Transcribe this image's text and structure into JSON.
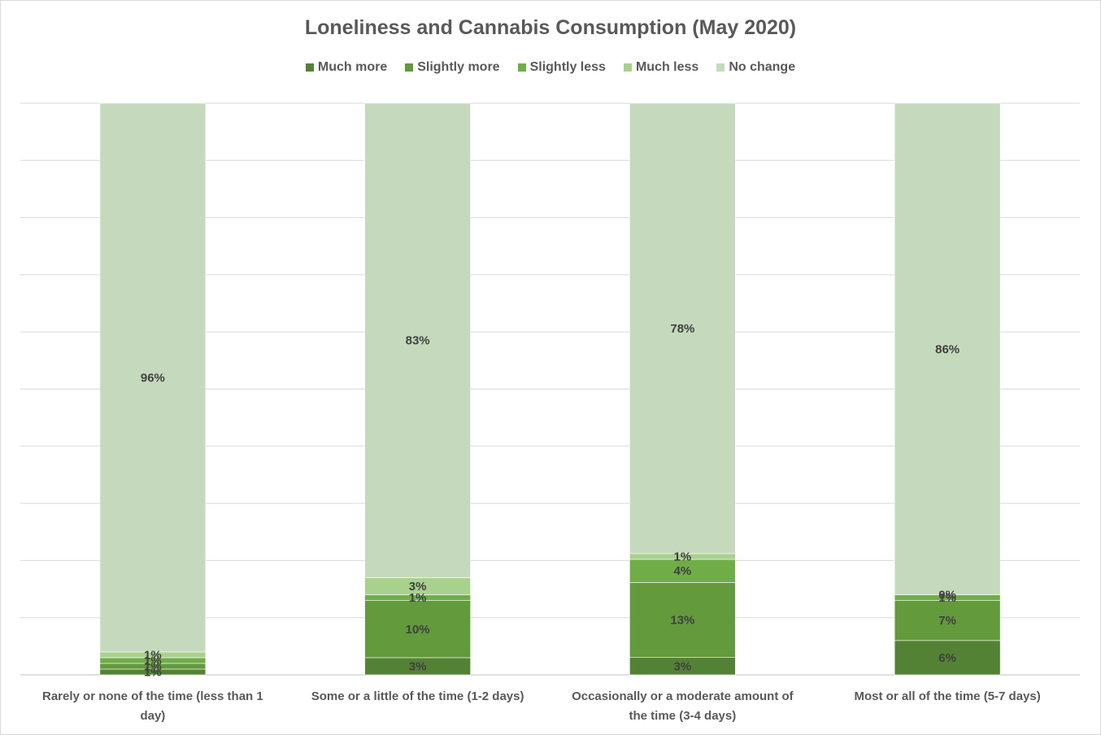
{
  "chart_data": {
    "type": "bar",
    "stacked": true,
    "title": "Loneliness and Cannabis Consumption (May 2020)",
    "categories": [
      [
        "Rarely or none of the time (less than 1",
        "day)"
      ],
      [
        "Some or a little of the time (1-2 days)"
      ],
      [
        "Occasionally or a moderate amount of",
        "the time (3-4 days)"
      ],
      [
        "Most or all of the time (5-7 days)"
      ]
    ],
    "series": [
      {
        "name": "Much more",
        "color": "#548235",
        "values": [
          1,
          3,
          3,
          6
        ],
        "labels": [
          "1%",
          "3%",
          "3%",
          "6%"
        ]
      },
      {
        "name": "Slightly more",
        "color": "#629a3c",
        "values": [
          1,
          10,
          13,
          7
        ],
        "labels": [
          "1%",
          "10%",
          "13%",
          "7%"
        ]
      },
      {
        "name": "Slightly less",
        "color": "#70ad47",
        "values": [
          1,
          1,
          4,
          1
        ],
        "labels": [
          "1%",
          "1%",
          "4%",
          "1%"
        ]
      },
      {
        "name": "Much less",
        "color": "#a9d18e",
        "values": [
          1,
          3,
          1,
          0
        ],
        "labels": [
          "1%",
          "3%",
          "1%",
          "0%"
        ]
      },
      {
        "name": "No change",
        "color": "#c5dabc",
        "values": [
          96,
          83,
          78,
          86
        ],
        "labels": [
          "96%",
          "83%",
          "78%",
          "86%"
        ]
      }
    ],
    "ylim": [
      0,
      100
    ],
    "grid": true,
    "legend": "top-center"
  }
}
